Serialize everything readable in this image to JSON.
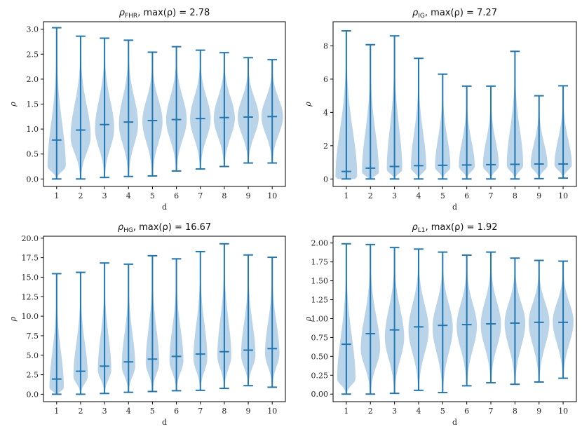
{
  "figure": {
    "background": "#ffffff"
  },
  "colors": {
    "fill": "#b9d3e8",
    "line": "#1f77b4",
    "axis": "#000000"
  },
  "chart_data": [
    {
      "type": "violin",
      "title_symbol": "ρ",
      "title_subscript": "FHR",
      "title_rest": ", max(ρ) = 2.78",
      "xlabel": "d",
      "ylabel": "ρ",
      "categories": [
        "1",
        "2",
        "3",
        "4",
        "5",
        "6",
        "7",
        "8",
        "9",
        "10"
      ],
      "ylim": [
        -0.15,
        3.15
      ],
      "yticks": [
        0.0,
        0.5,
        1.0,
        1.5,
        2.0,
        2.5,
        3.0
      ],
      "ytick_labels": [
        "0.0",
        "0.5",
        "1.0",
        "1.5",
        "2.0",
        "2.5",
        "3.0"
      ],
      "min": [
        0.0,
        0.0,
        0.03,
        0.05,
        0.06,
        0.16,
        0.2,
        0.25,
        0.32,
        0.32
      ],
      "max": [
        3.03,
        2.86,
        2.82,
        2.78,
        2.54,
        2.65,
        2.58,
        2.53,
        2.43,
        2.39
      ],
      "median": [
        0.78,
        0.98,
        1.09,
        1.14,
        1.17,
        1.19,
        1.21,
        1.23,
        1.24,
        1.25
      ],
      "mode": [
        0.25,
        0.85,
        1.0,
        1.1,
        1.15,
        1.18,
        1.2,
        1.22,
        1.24,
        1.25
      ],
      "max_halfwidth": [
        0.38,
        0.42,
        0.4,
        0.4,
        0.42,
        0.43,
        0.43,
        0.44,
        0.44,
        0.45
      ]
    },
    {
      "type": "violin",
      "title_symbol": "ρ",
      "title_subscript": "IG",
      "title_rest": ", max(ρ) = 7.27",
      "xlabel": "d",
      "ylabel": "ρ",
      "categories": [
        "1",
        "2",
        "3",
        "4",
        "5",
        "6",
        "7",
        "8",
        "9",
        "10"
      ],
      "ylim": [
        -0.45,
        9.45
      ],
      "yticks": [
        0,
        2,
        4,
        6,
        8
      ],
      "ytick_labels": [
        "0",
        "2",
        "4",
        "6",
        "8"
      ],
      "min": [
        0.0,
        0.0,
        0.0,
        0.0,
        0.0,
        0.0,
        0.0,
        0.0,
        0.02,
        0.05
      ],
      "max": [
        8.9,
        8.07,
        8.6,
        7.25,
        6.3,
        5.58,
        5.58,
        7.67,
        5.0,
        5.6
      ],
      "median": [
        0.45,
        0.65,
        0.75,
        0.8,
        0.82,
        0.84,
        0.86,
        0.88,
        0.9,
        0.9
      ],
      "mode": [
        0.15,
        0.4,
        0.55,
        0.65,
        0.7,
        0.75,
        0.78,
        0.8,
        0.82,
        0.85
      ],
      "max_halfwidth": [
        0.45,
        0.35,
        0.32,
        0.32,
        0.32,
        0.33,
        0.33,
        0.34,
        0.35,
        0.36
      ]
    },
    {
      "type": "violin",
      "title_symbol": "ρ",
      "title_subscript": "HG",
      "title_rest": ", max(ρ) = 16.67",
      "xlabel": "d",
      "ylabel": "ρ",
      "categories": [
        "1",
        "2",
        "3",
        "4",
        "5",
        "6",
        "7",
        "8",
        "9",
        "10"
      ],
      "ylim": [
        -0.95,
        20.25
      ],
      "yticks": [
        0.0,
        2.5,
        5.0,
        7.5,
        10.0,
        12.5,
        15.0,
        17.5,
        20.0
      ],
      "ytick_labels": [
        "0.0",
        "2.5",
        "5.0",
        "7.5",
        "10.0",
        "12.5",
        "15.0",
        "17.5",
        "20.0"
      ],
      "min": [
        0.0,
        0.0,
        0.1,
        0.25,
        0.35,
        0.45,
        0.5,
        0.75,
        1.1,
        0.9
      ],
      "max": [
        15.45,
        15.62,
        16.82,
        16.67,
        17.75,
        17.35,
        18.28,
        19.28,
        17.85,
        17.55
      ],
      "median": [
        1.95,
        2.95,
        3.6,
        4.15,
        4.5,
        4.85,
        5.15,
        5.45,
        5.65,
        5.85
      ],
      "mode": [
        0.8,
        2.3,
        3.1,
        3.6,
        4.0,
        4.3,
        4.6,
        4.9,
        5.0,
        5.2
      ],
      "max_halfwidth": [
        0.3,
        0.3,
        0.28,
        0.28,
        0.28,
        0.29,
        0.29,
        0.29,
        0.3,
        0.3
      ]
    },
    {
      "type": "violin",
      "title_symbol": "ρ",
      "title_subscript": "L1",
      "title_rest": ", max(ρ) = 1.92",
      "xlabel": "d",
      "ylabel": "ρ",
      "categories": [
        "1",
        "2",
        "3",
        "4",
        "5",
        "6",
        "7",
        "8",
        "9",
        "10"
      ],
      "ylim": [
        -0.1,
        2.09
      ],
      "yticks": [
        0.0,
        0.25,
        0.5,
        0.75,
        1.0,
        1.25,
        1.5,
        1.75,
        2.0
      ],
      "ytick_labels": [
        "0.00",
        "0.25",
        "0.50",
        "0.75",
        "1.00",
        "1.25",
        "1.50",
        "1.75",
        "2.00"
      ],
      "min": [
        0.0,
        0.0,
        0.01,
        0.05,
        0.02,
        0.11,
        0.15,
        0.13,
        0.16,
        0.21
      ],
      "max": [
        1.99,
        1.98,
        1.94,
        1.92,
        1.88,
        1.84,
        1.88,
        1.8,
        1.77,
        1.76
      ],
      "median": [
        0.66,
        0.8,
        0.85,
        0.89,
        0.91,
        0.92,
        0.93,
        0.94,
        0.95,
        0.95
      ],
      "mode": [
        0.2,
        0.6,
        0.75,
        0.85,
        0.88,
        0.9,
        0.92,
        0.94,
        0.95,
        0.96
      ],
      "max_halfwidth": [
        0.38,
        0.4,
        0.4,
        0.42,
        0.42,
        0.42,
        0.42,
        0.43,
        0.43,
        0.43
      ]
    }
  ]
}
